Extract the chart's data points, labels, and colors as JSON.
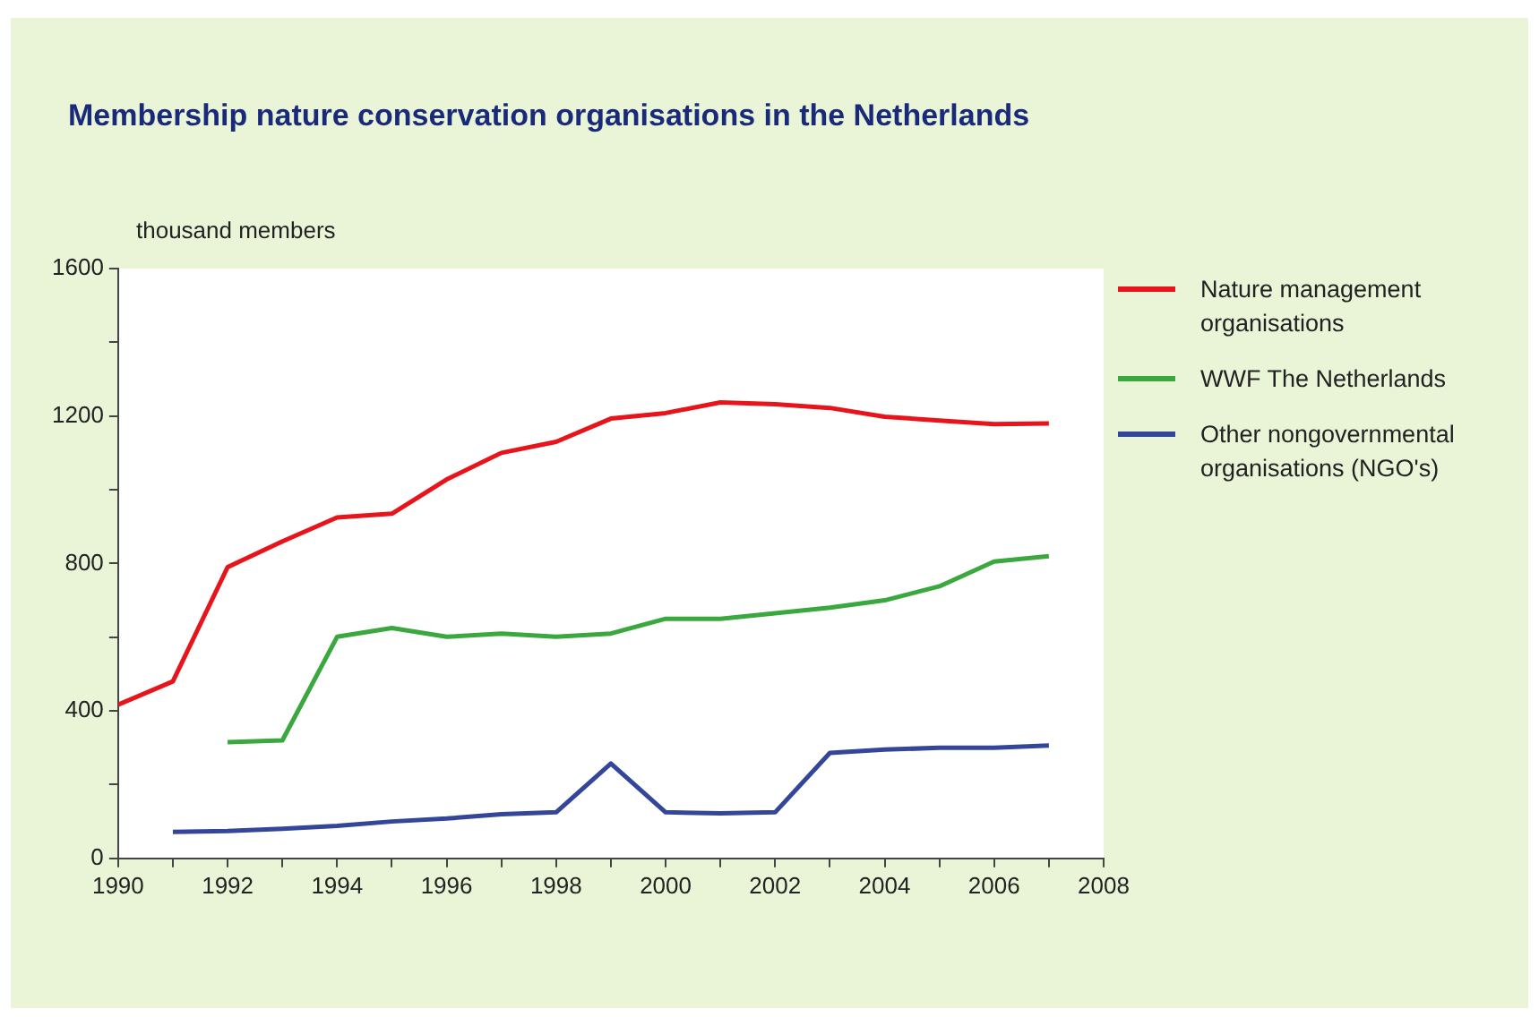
{
  "chart_data": {
    "type": "line",
    "title": "Membership nature conservation organisations in the Netherlands",
    "ylabel": "thousand members",
    "x": [
      1990,
      1991,
      1992,
      1993,
      1994,
      1995,
      1996,
      1997,
      1998,
      1999,
      2000,
      2001,
      2002,
      2003,
      2004,
      2005,
      2006,
      2007
    ],
    "series": [
      {
        "name": "Nature management organisations",
        "color": "#e8141b",
        "values": [
          417,
          480,
          790,
          860,
          925,
          935,
          1028,
          1100,
          1130,
          1193,
          1208,
          1237,
          1232,
          1222,
          1198,
          1188,
          1178,
          1180
        ]
      },
      {
        "name": "WWF The Netherlands",
        "color": "#3aa83f",
        "values": [
          null,
          null,
          315,
          320,
          601,
          625,
          601,
          610,
          601,
          610,
          650,
          650,
          665,
          680,
          700,
          738,
          805,
          820
        ]
      },
      {
        "name": "Other nongovernmental organisations (NGO's)",
        "color": "#34469a",
        "values": [
          null,
          72,
          74,
          80,
          88,
          100,
          108,
          120,
          125,
          257,
          125,
          122,
          125,
          286,
          295,
          300,
          300,
          306
        ]
      }
    ],
    "xlim": [
      1990,
      2008
    ],
    "xticks": [
      1990,
      {
        "value": 1991,
        "label": null
      },
      1992,
      {
        "value": 1993,
        "label": null
      },
      1994,
      {
        "value": 1995,
        "label": null
      },
      1996,
      {
        "value": 1997,
        "label": null
      },
      1998,
      {
        "value": 1999,
        "label": null
      },
      2000,
      {
        "value": 2001,
        "label": null
      },
      2002,
      {
        "value": 2003,
        "label": null
      },
      2004,
      {
        "value": 2005,
        "label": null
      },
      2006,
      {
        "value": 2007,
        "label": null
      },
      2008
    ],
    "ylim": [
      0,
      1600
    ],
    "yticks": [
      0,
      {
        "value": 200,
        "label": null
      },
      400,
      {
        "value": 600,
        "label": null
      },
      800,
      {
        "value": 1000,
        "label": null
      },
      1200,
      {
        "value": 1400,
        "label": null
      },
      1600
    ],
    "grid": false,
    "legend": "right",
    "marker": "none",
    "line_style": "solid"
  }
}
